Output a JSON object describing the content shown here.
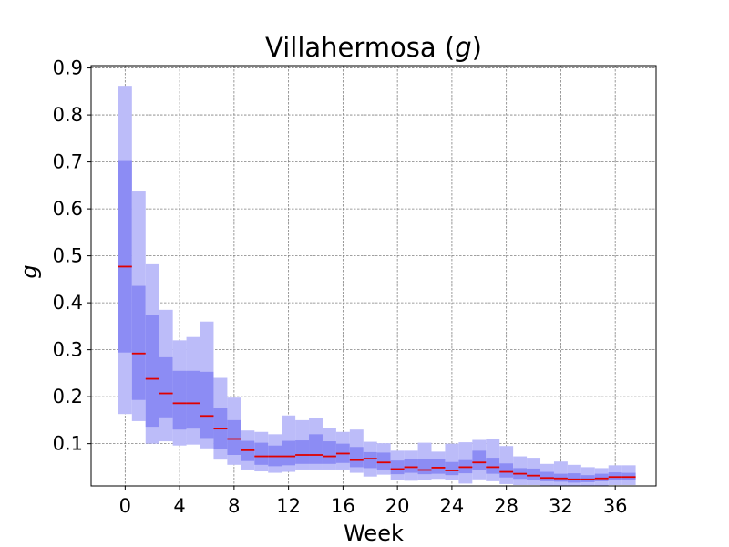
{
  "chart_data": {
    "type": "box",
    "title_main": "Villahermosa (",
    "title_var": "g",
    "title_close": ")",
    "xlabel": "Week",
    "ylabel": "g",
    "xlim": [
      -2.5,
      39
    ],
    "ylim": [
      0.01,
      0.905
    ],
    "xticks": [
      0,
      4,
      8,
      12,
      16,
      20,
      24,
      28,
      32,
      36
    ],
    "yticks": [
      0.1,
      0.2,
      0.3,
      0.4,
      0.5,
      0.6,
      0.7,
      0.8,
      0.9
    ],
    "grid": true,
    "colors": {
      "outer_band": "#bcbcf9",
      "inner_band": "#8c8cf4",
      "median": "#e00000",
      "grid": "#808080"
    },
    "weeks": [
      0,
      1,
      2,
      3,
      4,
      5,
      6,
      7,
      8,
      9,
      10,
      11,
      12,
      13,
      14,
      15,
      16,
      17,
      18,
      19,
      20,
      21,
      22,
      23,
      24,
      25,
      26,
      27,
      28,
      29,
      30,
      31,
      32,
      33,
      34,
      35,
      36,
      37
    ],
    "median": [
      0.477,
      0.292,
      0.238,
      0.207,
      0.186,
      0.186,
      0.159,
      0.132,
      0.11,
      0.086,
      0.073,
      0.073,
      0.073,
      0.076,
      0.076,
      0.073,
      0.079,
      0.065,
      0.068,
      0.06,
      0.046,
      0.05,
      0.044,
      0.049,
      0.043,
      0.05,
      0.06,
      0.05,
      0.04,
      0.036,
      0.032,
      0.027,
      0.026,
      0.024,
      0.024,
      0.026,
      0.029,
      0.029
    ],
    "inner_low": [
      0.294,
      0.193,
      0.136,
      0.156,
      0.13,
      0.132,
      0.112,
      0.089,
      0.076,
      0.063,
      0.055,
      0.052,
      0.054,
      0.057,
      0.057,
      0.057,
      0.059,
      0.05,
      0.048,
      0.045,
      0.035,
      0.038,
      0.035,
      0.036,
      0.033,
      0.037,
      0.043,
      0.036,
      0.028,
      0.025,
      0.023,
      0.02,
      0.019,
      0.017,
      0.018,
      0.02,
      0.022,
      0.022
    ],
    "inner_high": [
      0.702,
      0.436,
      0.375,
      0.284,
      0.255,
      0.255,
      0.253,
      0.176,
      0.15,
      0.106,
      0.102,
      0.096,
      0.106,
      0.107,
      0.12,
      0.105,
      0.1,
      0.093,
      0.082,
      0.081,
      0.064,
      0.067,
      0.068,
      0.067,
      0.061,
      0.065,
      0.085,
      0.07,
      0.058,
      0.048,
      0.047,
      0.04,
      0.036,
      0.037,
      0.033,
      0.036,
      0.039,
      0.038
    ],
    "outer_low": [
      0.163,
      0.148,
      0.1,
      0.105,
      0.096,
      0.098,
      0.09,
      0.066,
      0.055,
      0.045,
      0.041,
      0.038,
      0.04,
      0.045,
      0.045,
      0.045,
      0.045,
      0.038,
      0.03,
      0.034,
      0.023,
      0.021,
      0.023,
      0.025,
      0.022,
      0.015,
      0.024,
      0.02,
      0.014,
      0.012,
      0.012,
      0.01,
      0.01,
      0.01,
      0.01,
      0.01,
      0.012,
      0.012
    ],
    "outer_high": [
      0.862,
      0.637,
      0.482,
      0.385,
      0.32,
      0.327,
      0.36,
      0.24,
      0.198,
      0.128,
      0.125,
      0.12,
      0.16,
      0.15,
      0.154,
      0.133,
      0.125,
      0.13,
      0.104,
      0.101,
      0.085,
      0.085,
      0.102,
      0.083,
      0.1,
      0.103,
      0.108,
      0.11,
      0.095,
      0.073,
      0.07,
      0.057,
      0.062,
      0.055,
      0.05,
      0.048,
      0.054,
      0.054
    ]
  }
}
